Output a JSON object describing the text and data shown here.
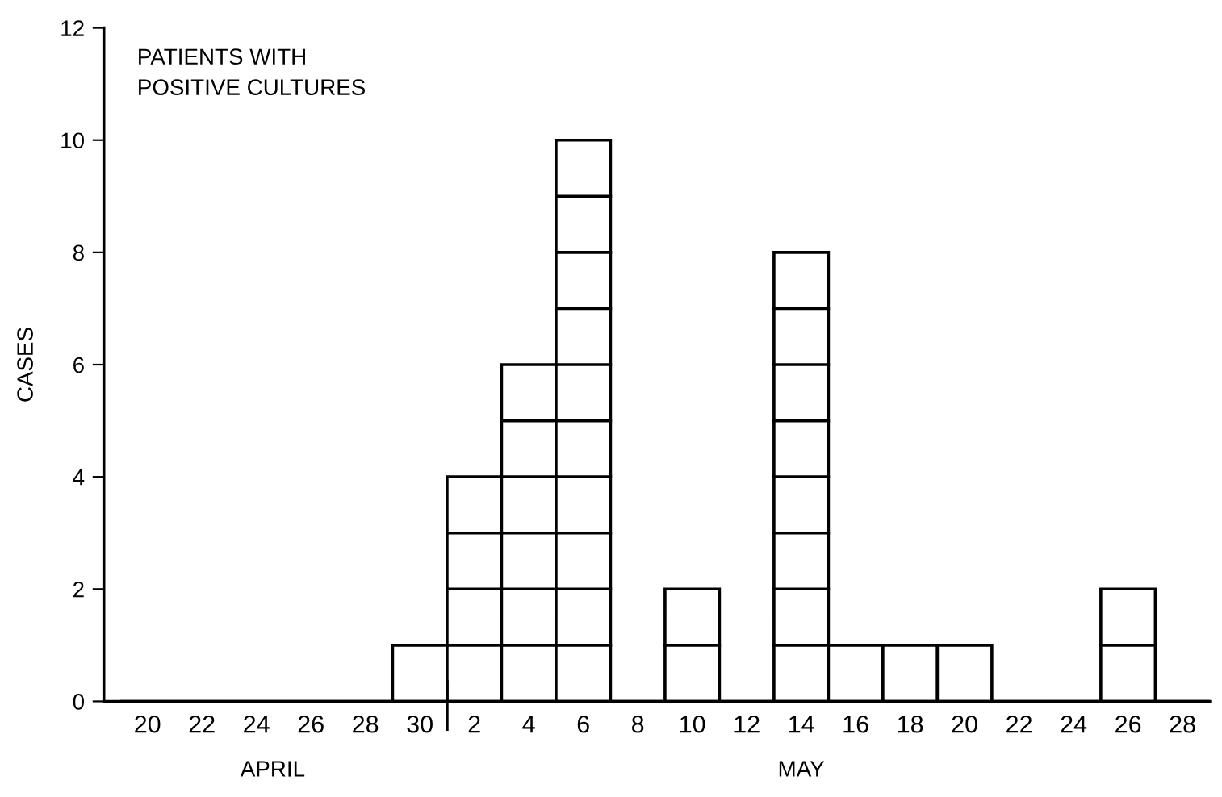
{
  "chart_data": {
    "type": "bar",
    "title": "PATIENTS WITH\nPOSITIVE CULTURES",
    "ylabel": "CASES",
    "categories": [
      "20",
      "22",
      "24",
      "26",
      "28",
      "30",
      "2",
      "4",
      "6",
      "8",
      "10",
      "12",
      "14",
      "16",
      "18",
      "20",
      "22",
      "24",
      "26",
      "28"
    ],
    "values": [
      0,
      0,
      0,
      0,
      0,
      1,
      4,
      6,
      10,
      0,
      2,
      0,
      8,
      1,
      1,
      1,
      0,
      0,
      2,
      0
    ],
    "color": "#ffffff",
    "ylim": [
      0,
      12
    ],
    "yticks": [
      0,
      2,
      4,
      6,
      8,
      10,
      12
    ],
    "grid": false,
    "legend": false,
    "annotations": [
      "APRIL",
      "MAY"
    ]
  }
}
